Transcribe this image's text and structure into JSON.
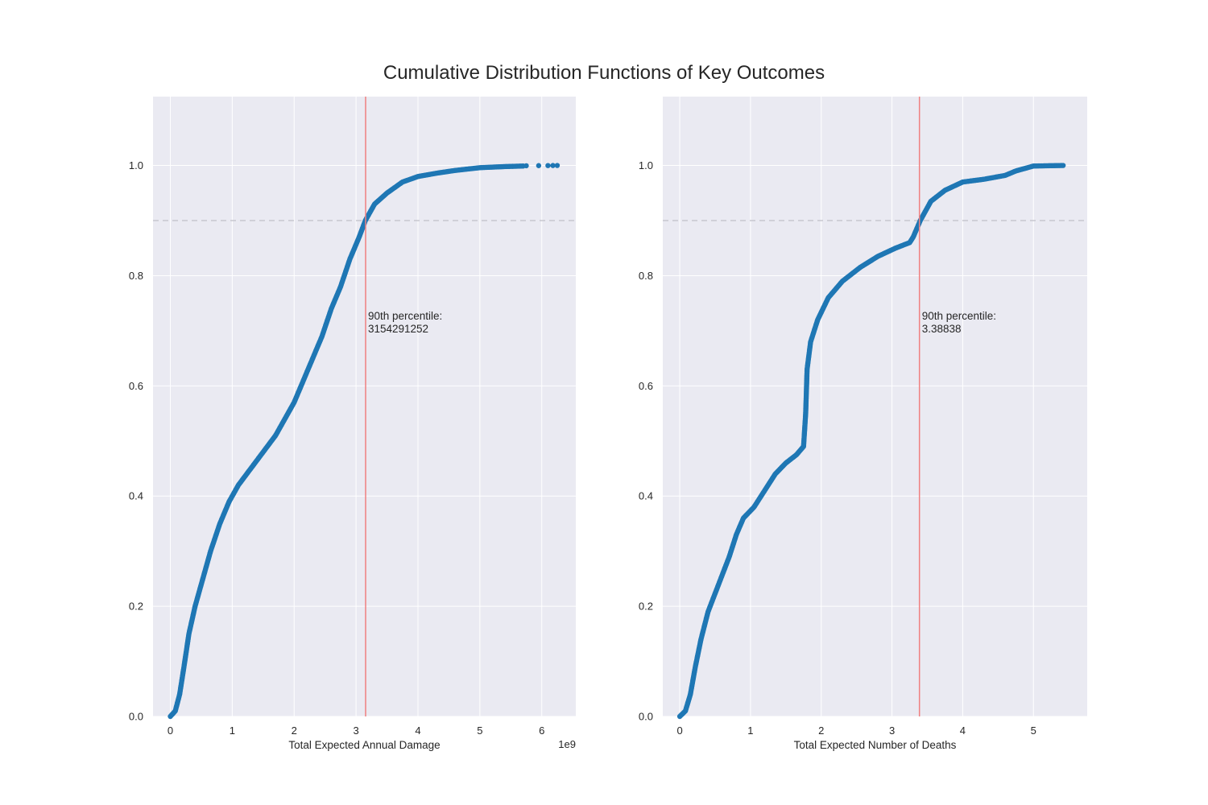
{
  "figure": {
    "title": "Cumulative Distribution Functions of Key Outcomes",
    "colors": {
      "background": "#eaeaf2",
      "grid": "#ffffff",
      "points": "#1f77b4",
      "vline": "#f08080",
      "hline": "#c8c8d0"
    }
  },
  "chart_data": [
    {
      "type": "scatter",
      "xlabel": "Total Expected Annual Damage",
      "ylabel": "",
      "x_offset_label": "1e9",
      "x_scale": 1000000000,
      "xlim": [
        -0.28,
        6.55
      ],
      "ylim": [
        0,
        1.125
      ],
      "xticks": [
        0,
        1,
        2,
        3,
        4,
        5,
        6
      ],
      "xtick_labels": [
        "0",
        "1",
        "2",
        "3",
        "4",
        "5",
        "6"
      ],
      "yticks": [
        0,
        0.2,
        0.4,
        0.6,
        0.8,
        1.0
      ],
      "ytick_labels": [
        "0.0",
        "0.2",
        "0.4",
        "0.6",
        "0.8",
        "1.0"
      ],
      "grid": true,
      "hline_y": 0.9,
      "vline_x": 3.154291252,
      "annotation_lines": [
        "90th percentile:",
        "3154291252"
      ],
      "annotation_pos": [
        3.154291252,
        0.72
      ],
      "curve": [
        [
          0.0,
          0.0
        ],
        [
          0.08,
          0.01
        ],
        [
          0.15,
          0.04
        ],
        [
          0.22,
          0.09
        ],
        [
          0.3,
          0.15
        ],
        [
          0.4,
          0.2
        ],
        [
          0.5,
          0.24
        ],
        [
          0.65,
          0.3
        ],
        [
          0.8,
          0.35
        ],
        [
          0.95,
          0.39
        ],
        [
          1.1,
          0.42
        ],
        [
          1.3,
          0.45
        ],
        [
          1.5,
          0.48
        ],
        [
          1.7,
          0.51
        ],
        [
          1.85,
          0.54
        ],
        [
          2.0,
          0.57
        ],
        [
          2.15,
          0.61
        ],
        [
          2.3,
          0.65
        ],
        [
          2.45,
          0.69
        ],
        [
          2.6,
          0.74
        ],
        [
          2.75,
          0.78
        ],
        [
          2.9,
          0.83
        ],
        [
          3.05,
          0.87
        ],
        [
          3.15,
          0.9
        ],
        [
          3.3,
          0.93
        ],
        [
          3.5,
          0.95
        ],
        [
          3.75,
          0.97
        ],
        [
          4.0,
          0.98
        ],
        [
          4.3,
          0.986
        ],
        [
          4.6,
          0.991
        ],
        [
          5.0,
          0.996
        ],
        [
          5.4,
          0.998
        ],
        [
          5.7,
          0.999
        ]
      ],
      "outliers": [
        [
          5.75,
          0.9995
        ],
        [
          5.95,
          0.9997
        ],
        [
          6.1,
          0.9998
        ],
        [
          6.18,
          0.9999
        ],
        [
          6.25,
          1.0
        ]
      ]
    },
    {
      "type": "scatter",
      "xlabel": "Total Expected Number of Deaths",
      "ylabel": "",
      "x_offset_label": "",
      "x_scale": 1,
      "xlim": [
        -0.24,
        5.76
      ],
      "ylim": [
        0,
        1.125
      ],
      "xticks": [
        0,
        1,
        2,
        3,
        4,
        5
      ],
      "xtick_labels": [
        "0",
        "1",
        "2",
        "3",
        "4",
        "5"
      ],
      "yticks": [
        0,
        0.2,
        0.4,
        0.6,
        0.8,
        1.0
      ],
      "ytick_labels": [
        "0.0",
        "0.2",
        "0.4",
        "0.6",
        "0.8",
        "1.0"
      ],
      "grid": true,
      "hline_y": 0.9,
      "vline_x": 3.38838,
      "annotation_lines": [
        "90th percentile:",
        "3.38838"
      ],
      "annotation_pos": [
        3.38838,
        0.72
      ],
      "curve": [
        [
          0.0,
          0.0
        ],
        [
          0.08,
          0.01
        ],
        [
          0.15,
          0.04
        ],
        [
          0.22,
          0.09
        ],
        [
          0.3,
          0.14
        ],
        [
          0.4,
          0.19
        ],
        [
          0.55,
          0.24
        ],
        [
          0.7,
          0.29
        ],
        [
          0.8,
          0.33
        ],
        [
          0.9,
          0.36
        ],
        [
          1.05,
          0.38
        ],
        [
          1.2,
          0.41
        ],
        [
          1.35,
          0.44
        ],
        [
          1.5,
          0.46
        ],
        [
          1.65,
          0.475
        ],
        [
          1.75,
          0.49
        ],
        [
          1.78,
          0.55
        ],
        [
          1.8,
          0.63
        ],
        [
          1.85,
          0.68
        ],
        [
          1.95,
          0.72
        ],
        [
          2.1,
          0.76
        ],
        [
          2.3,
          0.79
        ],
        [
          2.55,
          0.815
        ],
        [
          2.8,
          0.835
        ],
        [
          3.05,
          0.85
        ],
        [
          3.25,
          0.86
        ],
        [
          3.3,
          0.87
        ],
        [
          3.4,
          0.9
        ],
        [
          3.55,
          0.935
        ],
        [
          3.75,
          0.955
        ],
        [
          4.0,
          0.97
        ],
        [
          4.3,
          0.975
        ],
        [
          4.6,
          0.982
        ],
        [
          4.75,
          0.99
        ],
        [
          5.0,
          0.999
        ],
        [
          5.42,
          1.0
        ]
      ],
      "outliers": []
    }
  ]
}
